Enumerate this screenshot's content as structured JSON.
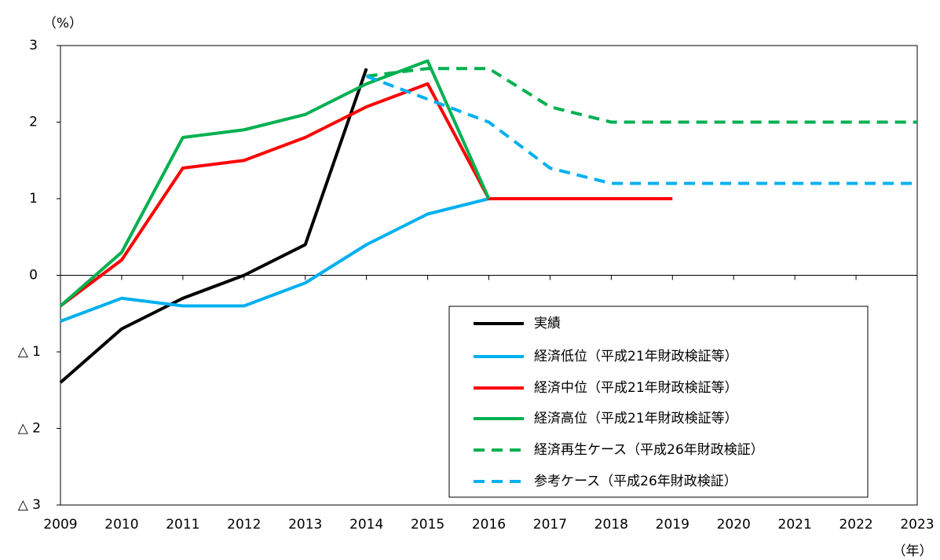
{
  "chart_data": {
    "type": "line",
    "y_unit_label": "（%）",
    "x_label": "（年）",
    "x": [
      2009,
      2010,
      2011,
      2012,
      2013,
      2014,
      2015,
      2016,
      2017,
      2018,
      2019,
      2020,
      2021,
      2022,
      2023
    ],
    "xlim": [
      2009,
      2023
    ],
    "xticks": [
      2009,
      2010,
      2011,
      2012,
      2013,
      2014,
      2015,
      2016,
      2017,
      2018,
      2019,
      2020,
      2021,
      2022,
      2023
    ],
    "ylim": [
      -3,
      3
    ],
    "yticks": [
      3,
      2,
      1,
      0,
      {
        "value": -1,
        "label": "△ 1"
      },
      {
        "value": -2,
        "label": "△ 2"
      },
      {
        "value": -3,
        "label": "△ 3"
      }
    ],
    "grid": false,
    "legend_position": "lower right",
    "series": [
      {
        "name": "実績",
        "color": "#000000",
        "dashed": false,
        "values": [
          -1.4,
          -0.7,
          -0.3,
          0,
          0.4,
          2.7,
          null,
          null,
          null,
          null,
          null,
          null,
          null,
          null,
          null
        ]
      },
      {
        "name": "経済低位（平成21年財政検証等）",
        "color": "#00B0F0",
        "dashed": false,
        "values": [
          -0.6,
          -0.3,
          -0.4,
          -0.4,
          -0.1,
          0.4,
          0.8,
          1.0,
          null,
          null,
          null,
          null,
          null,
          null,
          null
        ]
      },
      {
        "name": "経済中位（平成21年財政検証等）",
        "color": "#FF0000",
        "dashed": false,
        "values": [
          -0.4,
          0.2,
          1.4,
          1.5,
          1.8,
          2.2,
          2.5,
          1.0,
          1.0,
          1.0,
          1.0,
          null,
          null,
          null,
          null
        ]
      },
      {
        "name": "経済高位（平成21年財政検証等）",
        "color": "#00B050",
        "dashed": false,
        "values": [
          -0.4,
          0.3,
          1.8,
          1.9,
          2.1,
          2.5,
          2.8,
          1.0,
          null,
          null,
          null,
          null,
          null,
          null,
          null
        ]
      },
      {
        "name": "経済再生ケース（平成26年財政検証）",
        "color": "#00B050",
        "dashed": true,
        "values": [
          null,
          null,
          null,
          null,
          null,
          2.6,
          2.7,
          2.7,
          2.2,
          2.0,
          2.0,
          2.0,
          2.0,
          2.0,
          2.0
        ]
      },
      {
        "name": "参考ケース（平成26年財政検証）",
        "color": "#00B0F0",
        "dashed": true,
        "values": [
          null,
          null,
          null,
          null,
          null,
          2.6,
          2.3,
          2.0,
          1.4,
          1.2,
          1.2,
          1.2,
          1.2,
          1.2,
          1.2
        ]
      }
    ]
  }
}
